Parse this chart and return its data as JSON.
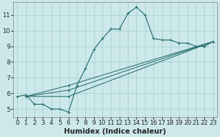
{
  "xlabel": "Humidex (Indice chaleur)",
  "xlim": [
    -0.5,
    23.5
  ],
  "ylim": [
    4.5,
    11.8
  ],
  "yticks": [
    5,
    6,
    7,
    8,
    9,
    10,
    11
  ],
  "xticks": [
    0,
    1,
    2,
    3,
    4,
    5,
    6,
    7,
    8,
    9,
    10,
    11,
    12,
    13,
    14,
    15,
    16,
    17,
    18,
    19,
    20,
    21,
    22,
    23
  ],
  "background_color": "#cde8ea",
  "grid_color": "#a8d4d6",
  "line_color": "#2a7070",
  "main_line": {
    "x": [
      0,
      1,
      2,
      3,
      4,
      5,
      6,
      7,
      8,
      9,
      10,
      11,
      12,
      13,
      14,
      15,
      16,
      17,
      18,
      19,
      20,
      21,
      22,
      23
    ],
    "y": [
      5.8,
      5.9,
      5.3,
      5.3,
      5.0,
      5.0,
      4.8,
      6.5,
      7.6,
      8.8,
      9.5,
      10.1,
      10.1,
      11.1,
      11.5,
      11.0,
      9.5,
      9.4,
      9.4,
      9.2,
      9.2,
      9.0,
      9.0,
      9.3
    ]
  },
  "straight_lines": [
    {
      "x": [
        1,
        6,
        23
      ],
      "y": [
        5.8,
        6.5,
        9.3
      ]
    },
    {
      "x": [
        1,
        6,
        23
      ],
      "y": [
        5.8,
        6.2,
        9.3
      ]
    },
    {
      "x": [
        1,
        6,
        23
      ],
      "y": [
        5.8,
        5.8,
        9.3
      ]
    }
  ],
  "fontsize_tick": 6.5,
  "fontsize_label": 7.5
}
